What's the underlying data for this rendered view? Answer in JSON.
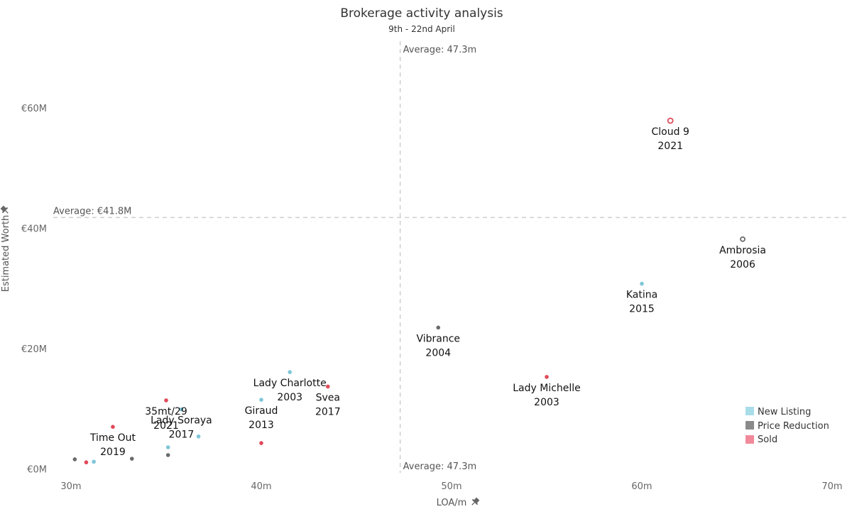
{
  "colors": {
    "New Listing": "#7ec6d8",
    "Price Reduction": "#6b6b6b",
    "Sold": "#e04a5a",
    "legend_new": "#a8dde9",
    "legend_price": "#8a8a8a",
    "legend_sold": "#f1899a"
  },
  "icons": {
    "axis_pin": "pin-icon"
  },
  "chart_data": {
    "type": "scatter",
    "title": "Brokerage activity analysis",
    "subtitle": "9th - 22nd April",
    "xlabel": "LOA/m",
    "ylabel": "Estimated Worth",
    "xlim": [
      30,
      70
    ],
    "ylim": [
      -1,
      71
    ],
    "x_ticks": [
      {
        "value": 30,
        "label": "30m"
      },
      {
        "value": 40,
        "label": "40m"
      },
      {
        "value": 50,
        "label": "50m"
      },
      {
        "value": 60,
        "label": "60m"
      },
      {
        "value": 70,
        "label": "70m"
      }
    ],
    "y_ticks": [
      {
        "value": 0,
        "label": "€0M"
      },
      {
        "value": 20,
        "label": "€20M"
      },
      {
        "value": 40,
        "label": "€40M"
      },
      {
        "value": 60,
        "label": "€60M"
      }
    ],
    "grid": false,
    "reference_lines": {
      "x": {
        "value": 47.3,
        "label_top": "Average: 47.3m",
        "label_bottom": "Average: 47.3m"
      },
      "y": {
        "value": 41.8,
        "label": "Average: €41.8M"
      }
    },
    "legend": {
      "position": "bottom-right",
      "entries": [
        "New Listing",
        "Price Reduction",
        "Sold"
      ]
    },
    "points": [
      {
        "x": 61.5,
        "y": 57.9,
        "status": "Sold",
        "name": "Cloud 9",
        "year": "2021",
        "r": 3.5
      },
      {
        "x": 65.3,
        "y": 38.2,
        "status": "Price Reduction",
        "name": "Ambrosia",
        "year": "2006",
        "r": 3
      },
      {
        "x": 60.0,
        "y": 30.8,
        "status": "New Listing",
        "name": "Katina",
        "year": "2015",
        "r": 2.5
      },
      {
        "x": 49.3,
        "y": 23.5,
        "status": "Price Reduction",
        "name": "Vibrance",
        "year": "2004",
        "r": 2.5
      },
      {
        "x": 55.0,
        "y": 15.3,
        "status": "Sold",
        "name": "Lady Michelle",
        "year": "2003",
        "r": 2.5
      },
      {
        "x": 41.5,
        "y": 16.1,
        "status": "New Listing",
        "name": "Lady Charlotte",
        "year": "2003",
        "r": 2.5
      },
      {
        "x": 43.5,
        "y": 13.7,
        "status": "Sold",
        "name": "Svea",
        "year": "2017",
        "r": 2.5
      },
      {
        "x": 40.0,
        "y": 11.5,
        "status": "New Listing",
        "name": "Giraud",
        "year": "2013",
        "r": 2.5
      },
      {
        "x": 35.8,
        "y": 9.9,
        "status": "New Listing",
        "name": "Lady Soraya",
        "year": "2017",
        "r": 2.5
      },
      {
        "x": 35.0,
        "y": 11.4,
        "status": "Sold",
        "name": "35mt/29",
        "year": "2021",
        "r": 2.5
      },
      {
        "x": 32.2,
        "y": 7.0,
        "status": "Sold",
        "name": "Time Out",
        "year": "2019",
        "r": 2.5
      },
      {
        "x": 36.7,
        "y": 5.4,
        "status": "New Listing",
        "name": "",
        "year": "",
        "r": 2.5
      },
      {
        "x": 35.1,
        "y": 3.6,
        "status": "New Listing",
        "name": "",
        "year": "",
        "r": 2.5
      },
      {
        "x": 40.0,
        "y": 4.3,
        "status": "Sold",
        "name": "",
        "year": "",
        "r": 2.5
      },
      {
        "x": 35.1,
        "y": 2.3,
        "status": "Price Reduction",
        "name": "",
        "year": "",
        "r": 2.5
      },
      {
        "x": 33.2,
        "y": 1.7,
        "status": "Price Reduction",
        "name": "",
        "year": "",
        "r": 2.5
      },
      {
        "x": 30.2,
        "y": 1.6,
        "status": "Price Reduction",
        "name": "",
        "year": "",
        "r": 2.5
      },
      {
        "x": 30.8,
        "y": 1.1,
        "status": "Sold",
        "name": "",
        "year": "",
        "r": 2.5
      },
      {
        "x": 31.2,
        "y": 1.2,
        "status": "New Listing",
        "name": "",
        "year": "",
        "r": 2.5
      }
    ]
  }
}
